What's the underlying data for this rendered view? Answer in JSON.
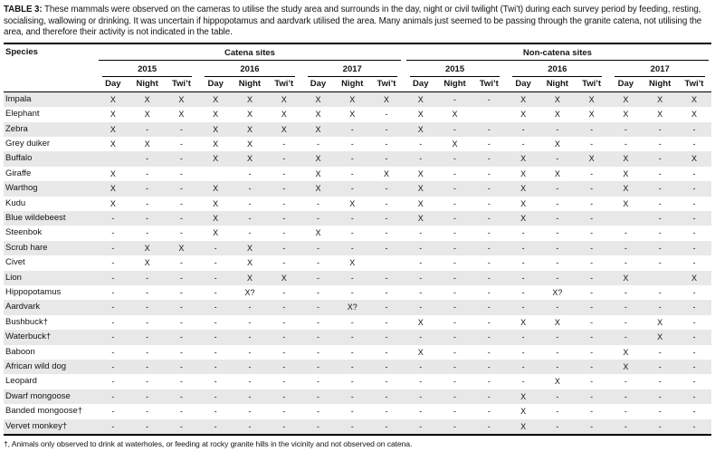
{
  "caption": {
    "label": "TABLE 3:",
    "text": "These mammals were observed on the cameras to utilise the study area and surrounds in the day, night or civil twilight (Twi’t) during each survey period by feeding, resting, socialising, wallowing or drinking. It was uncertain if hippopotamus and aardvark utilised the area. Many animals just seemed to be passing through the granite catena, not utilising the area, and therefore their activity is not indicated in the table."
  },
  "table": {
    "species_header": "Species",
    "groups": [
      {
        "label": "Catena sites"
      },
      {
        "label": "Non-catena sites"
      }
    ],
    "years": [
      "2015",
      "2016",
      "2017"
    ],
    "periods": [
      "Day",
      "Night",
      "Twi’t"
    ],
    "rows": [
      {
        "species": "Impala",
        "values": [
          "X",
          "X",
          "X",
          "X",
          "X",
          "X",
          "X",
          "X",
          "X",
          "X",
          "-",
          "-",
          "X",
          "X",
          "X",
          "X",
          "X",
          "X"
        ]
      },
      {
        "species": "Elephant",
        "values": [
          "X",
          "X",
          "X",
          "X",
          "X",
          "X",
          "X",
          "X",
          "-",
          "X",
          "X",
          "",
          "X",
          "X",
          "X",
          "X",
          "X",
          "X"
        ]
      },
      {
        "species": "Zebra",
        "values": [
          "X",
          "-",
          "-",
          "X",
          "X",
          "X",
          "X",
          "-",
          "-",
          "X",
          "-",
          "-",
          "-",
          "-",
          "-",
          "-",
          "-",
          "-"
        ]
      },
      {
        "species": "Grey duiker",
        "values": [
          "X",
          "X",
          "-",
          "X",
          "X",
          "-",
          "-",
          "-",
          "-",
          "-",
          "X",
          "-",
          "-",
          "X",
          "-",
          "-",
          "-",
          "-"
        ]
      },
      {
        "species": "Buffalo",
        "values": [
          "",
          "-",
          "-",
          "X",
          "X",
          "-",
          "X",
          "-",
          "-",
          "-",
          "-",
          "-",
          "X",
          "-",
          "X",
          "X",
          "-",
          "X"
        ]
      },
      {
        "species": "Giraffe",
        "values": [
          "X",
          "-",
          "-",
          "",
          "-",
          "-",
          "X",
          "-",
          "X",
          "X",
          "-",
          "-",
          "X",
          "X",
          "-",
          "X",
          "-",
          "-"
        ]
      },
      {
        "species": "Warthog",
        "values": [
          "X",
          "-",
          "-",
          "X",
          "-",
          "-",
          "X",
          "-",
          "-",
          "X",
          "-",
          "-",
          "X",
          "-",
          "-",
          "X",
          "-",
          "-"
        ]
      },
      {
        "species": "Kudu",
        "values": [
          "X",
          "-",
          "-",
          "X",
          "-",
          "-",
          "-",
          "X",
          "-",
          "X",
          "-",
          "-",
          "X",
          "-",
          "-",
          "X",
          "-",
          "-"
        ]
      },
      {
        "species": "Blue wildebeest",
        "values": [
          "-",
          "-",
          "-",
          "X",
          "-",
          "-",
          "-",
          "-",
          "-",
          "X",
          "-",
          "-",
          "X",
          "-",
          "-",
          "",
          "-",
          "-"
        ]
      },
      {
        "species": "Steenbok",
        "values": [
          "-",
          "-",
          "-",
          "X",
          "-",
          "-",
          "X",
          "-",
          "-",
          "-",
          "-",
          "-",
          "-",
          "-",
          "-",
          "-",
          "-",
          "-"
        ]
      },
      {
        "species": "Scrub hare",
        "values": [
          "-",
          "X",
          "X",
          "-",
          "X",
          "-",
          "-",
          "-",
          "-",
          "-",
          "-",
          "-",
          "-",
          "-",
          "-",
          "-",
          "-",
          "-"
        ]
      },
      {
        "species": "Civet",
        "values": [
          "-",
          "X",
          "-",
          "-",
          "X",
          "-",
          "-",
          "X",
          "",
          "-",
          "-",
          "-",
          "-",
          "-",
          "-",
          "-",
          "-",
          "-"
        ]
      },
      {
        "species": "Lion",
        "values": [
          "-",
          "-",
          "-",
          "-",
          "X",
          "X",
          "-",
          "-",
          "-",
          "-",
          "-",
          "-",
          "-",
          "-",
          "-",
          "X",
          "",
          "X"
        ]
      },
      {
        "species": "Hippopotamus",
        "values": [
          "-",
          "-",
          "-",
          "-",
          "X?",
          "-",
          "-",
          "-",
          "-",
          "-",
          "-",
          "-",
          "-",
          "X?",
          "-",
          "-",
          "-",
          "-"
        ]
      },
      {
        "species": "Aardvark",
        "values": [
          "-",
          "-",
          "-",
          "-",
          "-",
          "-",
          "-",
          "X?",
          "-",
          "-",
          "-",
          "-",
          "-",
          "-",
          "-",
          "-",
          "-",
          "-"
        ]
      },
      {
        "species": "Bushbuck†",
        "values": [
          "-",
          "-",
          "-",
          "-",
          "-",
          "-",
          "-",
          "-",
          "-",
          "X",
          "-",
          "-",
          "X",
          "X",
          "-",
          "-",
          "X",
          "-"
        ]
      },
      {
        "species": "Waterbuck†",
        "values": [
          "-",
          "-",
          "-",
          "-",
          "-",
          "-",
          "-",
          "-",
          "-",
          "-",
          "-",
          "-",
          "-",
          "-",
          "-",
          "-",
          "X",
          "-"
        ]
      },
      {
        "species": "Baboon",
        "values": [
          "-",
          "-",
          "-",
          "-",
          "-",
          "-",
          "-",
          "-",
          "-",
          "X",
          "-",
          "-",
          "-",
          "-",
          "-",
          "X",
          "-",
          "-"
        ]
      },
      {
        "species": "African wild dog",
        "values": [
          "-",
          "-",
          "-",
          "-",
          "-",
          "-",
          "-",
          "-",
          "-",
          "-",
          "-",
          "-",
          "-",
          "-",
          "-",
          "X",
          "-",
          "-"
        ]
      },
      {
        "species": "Leopard",
        "values": [
          "-",
          "-",
          "-",
          "-",
          "-",
          "-",
          "-",
          "-",
          "-",
          "-",
          "-",
          "-",
          "-",
          "X",
          "-",
          "-",
          "-",
          "-"
        ]
      },
      {
        "species": "Dwarf mongoose",
        "values": [
          "-",
          "-",
          "-",
          "-",
          "-",
          "-",
          "-",
          "-",
          "-",
          "-",
          "-",
          "-",
          "X",
          "-",
          "-",
          "-",
          "-",
          "-"
        ]
      },
      {
        "species": "Banded mongoose†",
        "values": [
          "-",
          "-",
          "-",
          "-",
          "-",
          "-",
          "-",
          "-",
          "-",
          "-",
          "-",
          "-",
          "X",
          "-",
          "-",
          "-",
          "-",
          "-"
        ]
      },
      {
        "species": "Vervet monkey†",
        "values": [
          "-",
          "-",
          "-",
          "-",
          "-",
          "-",
          "-",
          "-",
          "-",
          "-",
          "-",
          "-",
          "X",
          "-",
          "-",
          "-",
          "-",
          "-"
        ]
      }
    ]
  },
  "footnote": "†, Animals only observed to drink at waterholes, or feeding at rocky granite hills in the vicinity and not observed on catena.",
  "colors": {
    "row_shade": "#e8e8e8",
    "rule": "#000000",
    "text": "#141414"
  }
}
